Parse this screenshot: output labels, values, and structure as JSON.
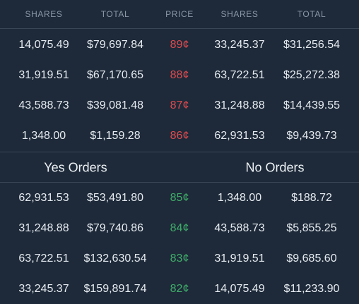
{
  "header": {
    "columns": [
      "SHARES",
      "TOTAL",
      "PRICE",
      "SHARES",
      "TOTAL"
    ]
  },
  "asks": [
    {
      "shares_left": "14,075.49",
      "total_left": "$79,697.84",
      "price": "89¢",
      "shares_right": "33,245.37",
      "total_right": "$31,256.54"
    },
    {
      "shares_left": "31,919.51",
      "total_left": "$67,170.65",
      "price": "88¢",
      "shares_right": "63,722.51",
      "total_right": "$25,272.38"
    },
    {
      "shares_left": "43,588.73",
      "total_left": "$39,081.48",
      "price": "87¢",
      "shares_right": "31,248.88",
      "total_right": "$14,439.55"
    },
    {
      "shares_left": "1,348.00",
      "total_left": "$1,159.28",
      "price": "86¢",
      "shares_right": "62,931.53",
      "total_right": "$9,439.73"
    }
  ],
  "sections": {
    "yes_title": "Yes Orders",
    "no_title": "No Orders"
  },
  "bids": [
    {
      "shares_left": "62,931.53",
      "total_left": "$53,491.80",
      "price": "85¢",
      "shares_right": "1,348.00",
      "total_right": "$188.72"
    },
    {
      "shares_left": "31,248.88",
      "total_left": "$79,740.86",
      "price": "84¢",
      "shares_right": "43,588.73",
      "total_right": "$5,855.25"
    },
    {
      "shares_left": "63,722.51",
      "total_left": "$132,630.54",
      "price": "83¢",
      "shares_right": "31,919.51",
      "total_right": "$9,685.60"
    },
    {
      "shares_left": "33,245.37",
      "total_left": "$159,891.74",
      "price": "82¢",
      "shares_right": "14,075.49",
      "total_right": "$11,233.90"
    }
  ],
  "colors": {
    "background": "#1e2a39",
    "ask_price": "#e04b4f",
    "bid_price": "#3fae6a",
    "header_text": "#8a97a7",
    "divider": "#3a4757"
  }
}
